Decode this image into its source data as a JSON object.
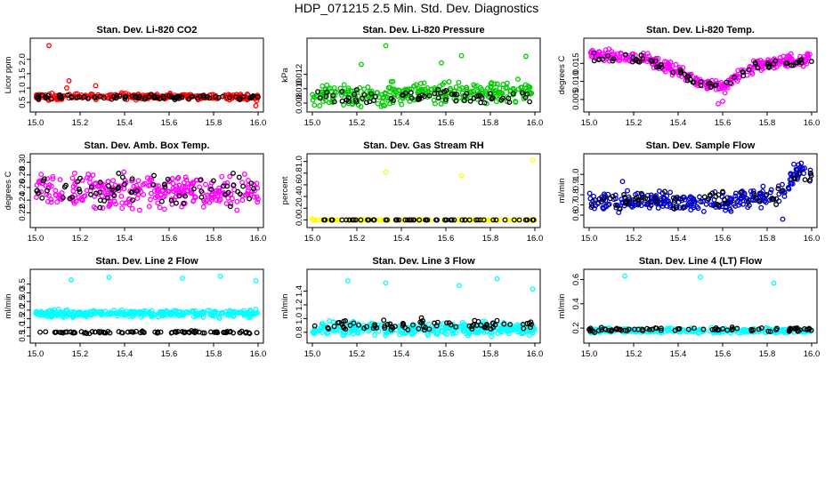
{
  "title": "HDP_071215  2.5 Min. Std. Dev. Diagnostics",
  "colors": {
    "red": "#ff0000",
    "black": "#000000",
    "green": "#00cc00",
    "magenta": "#ff00ff",
    "yellow": "#ffff00",
    "blue": "#0000ff",
    "cyan": "#00ffff"
  },
  "chart_data": [
    {
      "type": "scatter",
      "title": "Stan. Dev. Li-820 CO2",
      "xlabel": "",
      "ylabel": "Licor ppm",
      "xlim": [
        15.0,
        16.0
      ],
      "ylim": [
        0.35,
        2.55
      ],
      "xticks": [
        15.0,
        15.2,
        15.4,
        15.6,
        15.8,
        16.0
      ],
      "xtick_labels": [
        "15.0",
        "15.2",
        "15.4",
        "15.6",
        "15.8",
        "16.0"
      ],
      "yticks": [
        0.5,
        1.0,
        1.5,
        2.0
      ],
      "ytick_labels": [
        "0.5",
        "1.0",
        "1.5",
        "2.0"
      ],
      "series": [
        {
          "name": "primary",
          "color": "#ff0000",
          "profile": [
            [
              15.0,
              0.7
            ],
            [
              16.0,
              0.7
            ]
          ],
          "spread": 0.08,
          "count": 260,
          "outliers": [
            [
              15.06,
              2.48
            ],
            [
              15.15,
              1.25
            ],
            [
              15.27,
              1.08
            ],
            [
              15.14,
              1.0
            ],
            [
              15.99,
              0.38
            ]
          ]
        },
        {
          "name": "secondary",
          "color": "#000000",
          "profile": [
            [
              15.0,
              0.68
            ],
            [
              16.0,
              0.68
            ]
          ],
          "spread": 0.06,
          "count": 80,
          "outliers": []
        }
      ]
    },
    {
      "type": "scatter",
      "title": "Stan. Dev. Li-820 Pressure",
      "xlabel": "",
      "ylabel": "kPa",
      "xlim": [
        15.0,
        16.0
      ],
      "ylim": [
        0.0075,
        0.0163
      ],
      "xticks": [
        15.0,
        15.2,
        15.4,
        15.6,
        15.8,
        16.0
      ],
      "xtick_labels": [
        "15.0",
        "15.2",
        "15.4",
        "15.6",
        "15.8",
        "16.0"
      ],
      "yticks": [
        0.008,
        0.01,
        0.012
      ],
      "ytick_labels": [
        "0.008",
        "0.010",
        "0.012"
      ],
      "series": [
        {
          "name": "primary",
          "color": "#00cc00",
          "profile": [
            [
              15.0,
              0.0091
            ],
            [
              16.0,
              0.0097
            ]
          ],
          "spread": 0.0011,
          "count": 300,
          "outliers": [
            [
              15.33,
              0.016
            ],
            [
              15.67,
              0.0146
            ],
            [
              15.96,
              0.0145
            ],
            [
              15.58,
              0.0136
            ],
            [
              15.22,
              0.0134
            ]
          ]
        },
        {
          "name": "secondary",
          "color": "#000000",
          "profile": [
            [
              15.0,
              0.0088
            ],
            [
              16.0,
              0.0091
            ]
          ],
          "spread": 0.0008,
          "count": 70,
          "outliers": []
        }
      ]
    },
    {
      "type": "scatter",
      "title": "Stan. Dev. Li-820 Temp.",
      "xlabel": "",
      "ylabel": "degrees C",
      "xlim": [
        15.0,
        16.0
      ],
      "ylim": [
        0.003,
        0.0205
      ],
      "xticks": [
        15.0,
        15.2,
        15.4,
        15.6,
        15.8,
        16.0
      ],
      "xtick_labels": [
        "15.0",
        "15.2",
        "15.4",
        "15.6",
        "15.8",
        "16.0"
      ],
      "yticks": [
        0.005,
        0.01,
        0.015
      ],
      "ytick_labels": [
        "0.005",
        "0.010",
        "0.015"
      ],
      "series": [
        {
          "name": "primary",
          "color": "#ff00ff",
          "profile": [
            [
              15.0,
              0.0175
            ],
            [
              15.25,
              0.016
            ],
            [
              15.4,
              0.013
            ],
            [
              15.5,
              0.0095
            ],
            [
              15.6,
              0.0085
            ],
            [
              15.66,
              0.011
            ],
            [
              15.75,
              0.0145
            ],
            [
              16.0,
              0.0165
            ]
          ],
          "spread": 0.0012,
          "count": 320,
          "outliers": [
            [
              15.58,
              0.0038
            ],
            [
              15.6,
              0.0045
            ]
          ]
        },
        {
          "name": "secondary",
          "color": "#000000",
          "profile": [
            [
              15.0,
              0.017
            ],
            [
              15.25,
              0.0158
            ],
            [
              15.4,
              0.0128
            ],
            [
              15.5,
              0.0095
            ],
            [
              15.6,
              0.0088
            ],
            [
              15.66,
              0.011
            ],
            [
              15.75,
              0.0142
            ],
            [
              16.0,
              0.016
            ]
          ],
          "spread": 0.0009,
          "count": 70,
          "outliers": []
        }
      ]
    },
    {
      "type": "scatter",
      "title": "Stan. Dev. Amb. Box Temp.",
      "xlabel": "",
      "ylabel": "degrees C",
      "xlim": [
        15.0,
        16.0
      ],
      "ylim": [
        0.205,
        0.305
      ],
      "xticks": [
        15.0,
        15.2,
        15.4,
        15.6,
        15.8,
        16.0
      ],
      "xtick_labels": [
        "15.0",
        "15.2",
        "15.4",
        "15.6",
        "15.8",
        "16.0"
      ],
      "yticks": [
        0.22,
        0.24,
        0.26,
        0.28,
        0.3
      ],
      "ytick_labels": [
        "0.22",
        "0.24",
        "0.26",
        "0.28",
        "0.30"
      ],
      "series": [
        {
          "name": "primary",
          "color": "#ff00ff",
          "profile": [
            [
              15.0,
              0.255
            ],
            [
              16.0,
              0.255
            ]
          ],
          "spread": 0.02,
          "count": 300,
          "outliers": []
        },
        {
          "name": "secondary",
          "color": "#000000",
          "profile": [
            [
              15.0,
              0.255
            ],
            [
              16.0,
              0.255
            ]
          ],
          "spread": 0.02,
          "count": 70,
          "outliers": []
        }
      ]
    },
    {
      "type": "scatter",
      "title": "Stan. Dev. Gas Stream RH",
      "xlabel": "",
      "ylabel": "percent",
      "xlim": [
        15.0,
        16.0
      ],
      "ylim": [
        -0.04,
        1.04
      ],
      "xticks": [
        15.0,
        15.2,
        15.4,
        15.6,
        15.8,
        16.0
      ],
      "xtick_labels": [
        "15.0",
        "15.2",
        "15.4",
        "15.6",
        "15.8",
        "16.0"
      ],
      "yticks": [
        0.0,
        0.2,
        0.4,
        0.6,
        0.8,
        1.0
      ],
      "ytick_labels": [
        "0.0",
        "0.2",
        "0.4",
        "0.6",
        "0.8",
        "1.0"
      ],
      "series": [
        {
          "name": "primary",
          "color": "#ffff00",
          "profile": [
            [
              15.0,
              0.0
            ],
            [
              16.0,
              0.0
            ]
          ],
          "spread": 0.0,
          "count": 120,
          "outliers": [
            [
              15.33,
              0.82
            ],
            [
              15.67,
              0.76
            ],
            [
              15.99,
              1.02
            ],
            [
              15.0,
              0.02
            ]
          ]
        },
        {
          "name": "secondary",
          "color": "#000000",
          "profile": [
            [
              15.0,
              0.0
            ],
            [
              16.0,
              0.0
            ]
          ],
          "spread": 0.0,
          "count": 60,
          "outliers": []
        }
      ]
    },
    {
      "type": "scatter",
      "title": "Stan. Dev. Sample Flow",
      "xlabel": "",
      "ylabel": "ml/min",
      "xlim": [
        15.0,
        16.0
      ],
      "ylim": [
        0.53,
        1.15
      ],
      "xticks": [
        15.0,
        15.2,
        15.4,
        15.6,
        15.8,
        16.0
      ],
      "xtick_labels": [
        "15.0",
        "15.2",
        "15.4",
        "15.6",
        "15.8",
        "16.0"
      ],
      "yticks": [
        0.6,
        0.7,
        0.8,
        0.9,
        1.0
      ],
      "ytick_labels": [
        "0.6",
        "0.7",
        "0.8",
        "0.9",
        "1.0"
      ],
      "series": [
        {
          "name": "primary",
          "color": "#0000cc",
          "profile": [
            [
              15.0,
              0.72
            ],
            [
              15.2,
              0.75
            ],
            [
              15.5,
              0.72
            ],
            [
              15.85,
              0.78
            ],
            [
              15.92,
              0.95
            ],
            [
              15.95,
              1.05
            ],
            [
              16.0,
              1.0
            ]
          ],
          "spread": 0.07,
          "count": 280,
          "outliers": [
            [
              15.92,
              1.1
            ],
            [
              15.87,
              0.56
            ],
            [
              15.15,
              0.93
            ]
          ]
        },
        {
          "name": "secondary",
          "color": "#000000",
          "profile": [
            [
              15.0,
              0.75
            ],
            [
              15.5,
              0.74
            ],
            [
              15.85,
              0.78
            ],
            [
              15.95,
              1.0
            ],
            [
              16.0,
              0.98
            ]
          ],
          "spread": 0.06,
          "count": 60,
          "outliers": []
        }
      ]
    },
    {
      "type": "scatter",
      "title": "Stan. Dev. Line 2 Flow",
      "xlabel": "",
      "ylabel": "ml/min",
      "xlim": [
        15.0,
        16.0
      ],
      "ylim": [
        0.4,
        4.05
      ],
      "xticks": [
        15.0,
        15.2,
        15.4,
        15.6,
        15.8,
        16.0
      ],
      "xtick_labels": [
        "15.0",
        "15.2",
        "15.4",
        "15.6",
        "15.8",
        "16.0"
      ],
      "yticks": [
        0.5,
        1.0,
        1.5,
        2.0,
        2.5,
        3.0,
        3.5
      ],
      "ytick_labels": [
        "0.5",
        "1.0",
        "1.5",
        "2.0",
        "2.5",
        "3.0",
        "3.5"
      ],
      "series": [
        {
          "name": "primary",
          "color": "#00ffff",
          "profile": [
            [
              15.0,
              1.8
            ],
            [
              16.0,
              1.8
            ]
          ],
          "spread": 0.15,
          "count": 300,
          "outliers": [
            [
              15.16,
              3.75
            ],
            [
              15.33,
              3.9
            ],
            [
              15.66,
              3.85
            ],
            [
              15.83,
              3.95
            ],
            [
              15.99,
              3.7
            ]
          ]
        },
        {
          "name": "secondary",
          "color": "#000000",
          "profile": [
            [
              15.0,
              0.72
            ],
            [
              16.0,
              0.72
            ]
          ],
          "spread": 0.05,
          "count": 90,
          "outliers": []
        }
      ]
    },
    {
      "type": "scatter",
      "title": "Stan. Dev. Line 3 Flow",
      "xlabel": "",
      "ylabel": "ml/min",
      "xlim": [
        15.0,
        16.0
      ],
      "ylim": [
        0.72,
        1.64
      ],
      "xticks": [
        15.0,
        15.2,
        15.4,
        15.6,
        15.8,
        16.0
      ],
      "xtick_labels": [
        "15.0",
        "15.2",
        "15.4",
        "15.6",
        "15.8",
        "16.0"
      ],
      "yticks": [
        0.8,
        1.0,
        1.2,
        1.4
      ],
      "ytick_labels": [
        "0.8",
        "1.0",
        "1.2",
        "1.4"
      ],
      "series": [
        {
          "name": "primary",
          "color": "#00ffff",
          "profile": [
            [
              15.0,
              0.85
            ],
            [
              16.0,
              0.85
            ]
          ],
          "spread": 0.07,
          "count": 320,
          "outliers": [
            [
              15.16,
              1.55
            ],
            [
              15.33,
              1.52
            ],
            [
              15.66,
              1.48
            ],
            [
              15.83,
              1.58
            ],
            [
              15.99,
              1.43
            ]
          ]
        },
        {
          "name": "secondary",
          "color": "#000000",
          "profile": [
            [
              15.0,
              0.9
            ],
            [
              16.0,
              0.9
            ]
          ],
          "spread": 0.05,
          "count": 80,
          "outliers": [
            [
              15.49,
              1.01
            ],
            [
              15.83,
              0.97
            ]
          ]
        }
      ]
    },
    {
      "type": "scatter",
      "title": "Stan. Dev. Line 4 (LT) Flow",
      "xlabel": "",
      "ylabel": "ml/min",
      "xlim": [
        15.0,
        16.0
      ],
      "ylim": [
        0.12,
        0.64
      ],
      "xticks": [
        15.0,
        15.2,
        15.4,
        15.6,
        15.8,
        16.0
      ],
      "xtick_labels": [
        "15.0",
        "15.2",
        "15.4",
        "15.6",
        "15.8",
        "16.0"
      ],
      "yticks": [
        0.2,
        0.4,
        0.6
      ],
      "ytick_labels": [
        "0.2",
        "0.4",
        "0.6"
      ],
      "series": [
        {
          "name": "primary",
          "color": "#00ffff",
          "profile": [
            [
              15.0,
              0.18
            ],
            [
              16.0,
              0.18
            ]
          ],
          "spread": 0.015,
          "count": 260,
          "outliers": [
            [
              15.16,
              0.63
            ],
            [
              15.5,
              0.62
            ],
            [
              15.83,
              0.57
            ]
          ]
        },
        {
          "name": "secondary",
          "color": "#000000",
          "profile": [
            [
              15.0,
              0.185
            ],
            [
              16.0,
              0.19
            ]
          ],
          "spread": 0.012,
          "count": 80,
          "outliers": []
        }
      ]
    }
  ]
}
